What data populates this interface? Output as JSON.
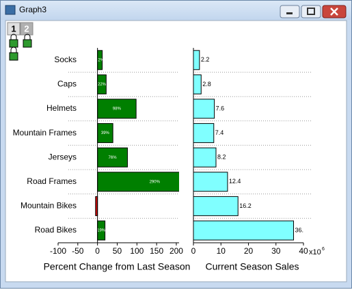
{
  "window": {
    "title": "Graph3",
    "tabs": [
      "1",
      "2"
    ]
  },
  "chart_data": [
    {
      "type": "bar",
      "orientation": "horizontal",
      "categories": [
        "Socks",
        "Caps",
        "Helmets",
        "Mountain Frames",
        "Jerseys",
        "Road Frames",
        "Mountain Bikes",
        "Road Bikes"
      ],
      "values": [
        12,
        22,
        98,
        39,
        76,
        290,
        -5,
        19
      ],
      "value_labels": [
        "12%",
        "22%",
        "98%",
        "39%",
        "76%",
        "290%",
        null,
        "19%"
      ],
      "color": "#007f00",
      "negative_color": "#cc0000",
      "xlim": [
        -100,
        207
      ],
      "xticks": [
        -100,
        -50,
        0,
        50,
        100,
        150,
        200
      ],
      "xlabel": "Percent Change from Last Season",
      "grid": true
    },
    {
      "type": "bar",
      "orientation": "horizontal",
      "values": [
        2.2,
        2.8,
        7.6,
        7.4,
        8.2,
        12.4,
        16.2,
        36.4
      ],
      "color": "#80ffff",
      "xlim": [
        0,
        40
      ],
      "xticks": [
        0,
        10,
        20,
        30,
        40
      ],
      "x_multiplier": {
        "base": "x10",
        "exponent": "6"
      },
      "xlabel": "Current Season Sales",
      "grid": true
    }
  ]
}
